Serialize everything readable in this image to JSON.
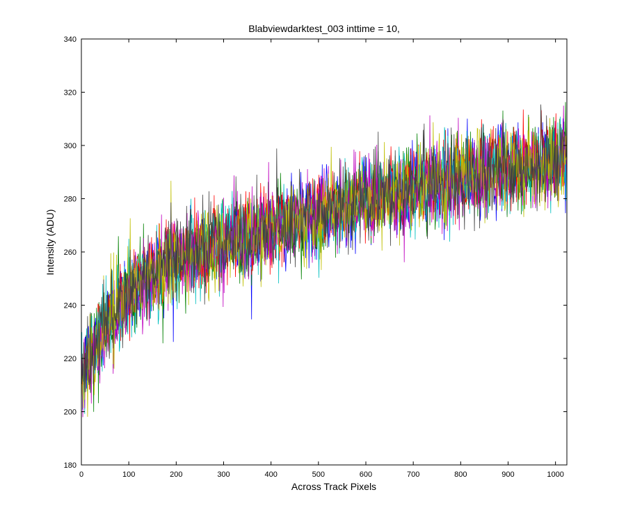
{
  "chart_data": {
    "type": "line",
    "title": "Blabviewdarktest_003 inttime = 10,",
    "xlabel": "Across Track Pixels",
    "ylabel": "Intensity (ADU)",
    "xlim": [
      0,
      1024
    ],
    "ylim": [
      180,
      340
    ],
    "xticks": [
      0,
      100,
      200,
      300,
      400,
      500,
      600,
      700,
      800,
      900,
      1000
    ],
    "yticks": [
      180,
      200,
      220,
      240,
      260,
      280,
      300,
      320,
      340
    ],
    "grid": false,
    "legend": "none",
    "series": [
      {
        "color": "#0000ff",
        "x": [
          0,
          50,
          100,
          200,
          300,
          400,
          500,
          600,
          700,
          800,
          900,
          1000,
          1024
        ],
        "y": [
          215,
          233,
          246,
          258,
          264,
          269,
          274,
          280,
          284,
          288,
          292,
          294,
          296
        ]
      },
      {
        "color": "#008000",
        "x": [
          0,
          50,
          100,
          200,
          300,
          400,
          500,
          600,
          700,
          800,
          900,
          1000,
          1024
        ],
        "y": [
          214,
          232,
          245,
          257,
          263,
          269,
          274,
          279,
          284,
          288,
          291,
          294,
          296
        ]
      },
      {
        "color": "#ff0000",
        "x": [
          0,
          50,
          100,
          200,
          300,
          400,
          500,
          600,
          700,
          800,
          900,
          1000,
          1024
        ],
        "y": [
          216,
          234,
          246,
          258,
          264,
          270,
          275,
          280,
          285,
          289,
          293,
          295,
          297
        ]
      },
      {
        "color": "#00bfbf",
        "x": [
          0,
          50,
          100,
          200,
          300,
          400,
          500,
          600,
          700,
          800,
          900,
          1000,
          1024
        ],
        "y": [
          215,
          233,
          245,
          257,
          264,
          269,
          274,
          279,
          284,
          288,
          292,
          294,
          296
        ]
      },
      {
        "color": "#bf00bf",
        "x": [
          0,
          50,
          100,
          200,
          300,
          400,
          500,
          600,
          700,
          800,
          900,
          1000,
          1024
        ],
        "y": [
          213,
          231,
          244,
          256,
          263,
          268,
          273,
          279,
          283,
          287,
          291,
          293,
          295
        ]
      },
      {
        "color": "#bfbf00",
        "x": [
          0,
          50,
          100,
          200,
          300,
          400,
          500,
          600,
          700,
          800,
          900,
          1000,
          1024
        ],
        "y": [
          214,
          232,
          245,
          257,
          263,
          269,
          274,
          279,
          284,
          288,
          292,
          294,
          296
        ]
      },
      {
        "color": "#404040",
        "x": [
          0,
          50,
          100,
          200,
          300,
          400,
          500,
          600,
          700,
          800,
          900,
          1000,
          1024
        ],
        "y": [
          215,
          233,
          245,
          257,
          264,
          269,
          274,
          280,
          284,
          288,
          292,
          294,
          296
        ]
      }
    ],
    "noise_amplitude": 14
  }
}
